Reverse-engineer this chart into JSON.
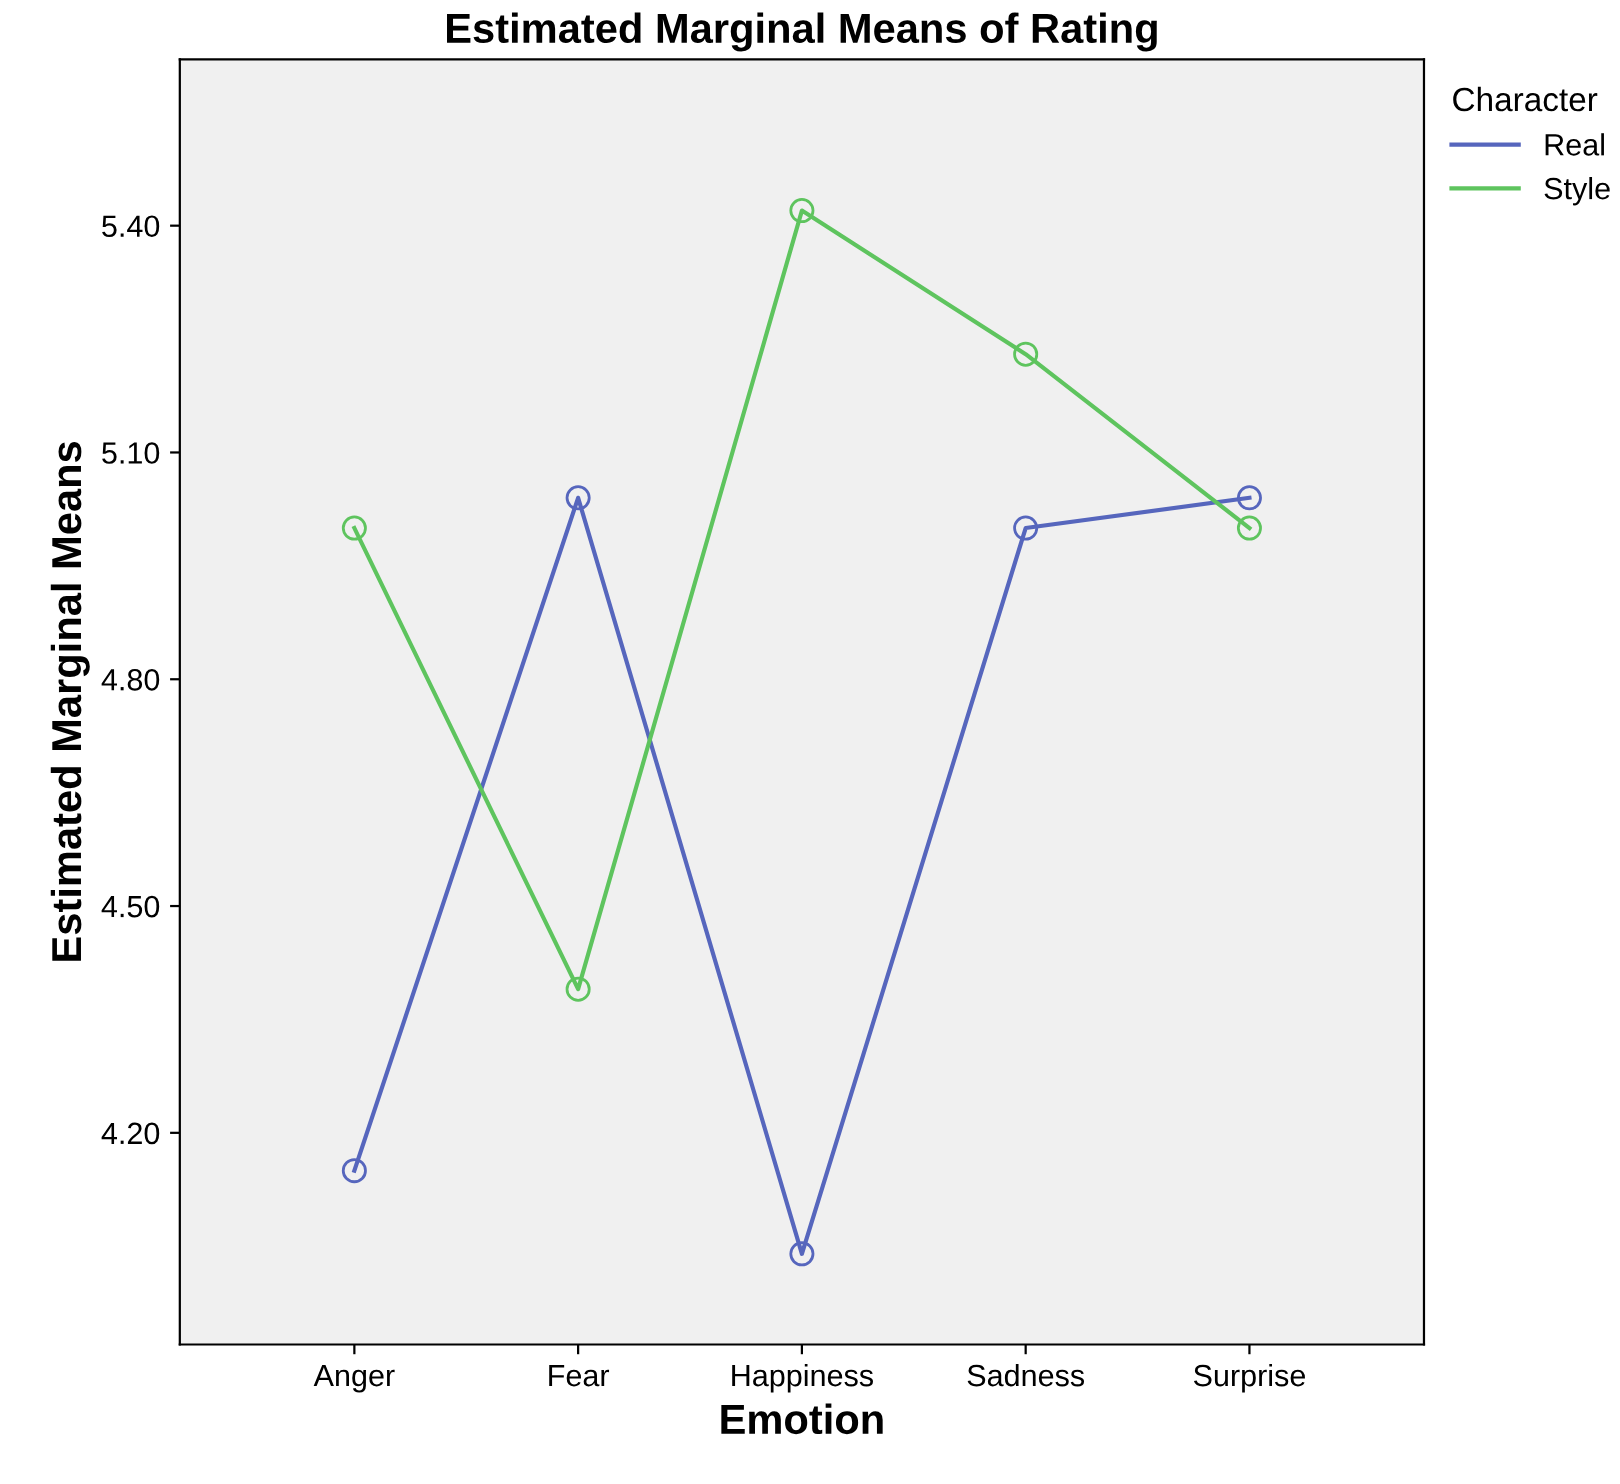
{
  "chart_data": {
    "type": "line",
    "title": "Estimated Marginal Means of Rating",
    "xlabel": "Emotion",
    "ylabel": "Estimated Marginal Means",
    "legend_title": "Character",
    "categories": [
      "Anger",
      "Fear",
      "Happiness",
      "Sadness",
      "Surprise"
    ],
    "series": [
      {
        "name": "Real",
        "color": "#5666bd",
        "values": [
          4.15,
          5.04,
          4.04,
          5.0,
          5.04
        ]
      },
      {
        "name": "Style",
        "color": "#5ec45e",
        "values": [
          5.0,
          4.39,
          5.42,
          5.23,
          5.0
        ]
      }
    ],
    "ylim": [
      3.92,
      5.62
    ],
    "yticks": [
      {
        "value": 4.2,
        "label": "4.20"
      },
      {
        "value": 4.5,
        "label": "4.50"
      },
      {
        "value": 4.8,
        "label": "4.80"
      },
      {
        "value": 5.1,
        "label": "5.10"
      },
      {
        "value": 5.4,
        "label": "5.40"
      }
    ],
    "marker": "circle",
    "line_style": "solid",
    "legend": "top right",
    "grid": false
  }
}
